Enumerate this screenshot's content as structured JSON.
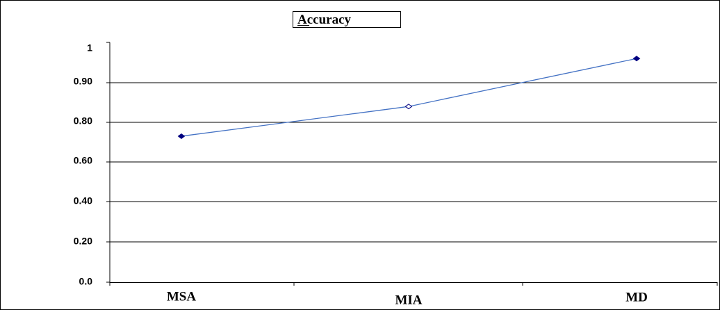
{
  "chart_data": {
    "type": "line",
    "categories": [
      "MSA",
      "MIA",
      "MD"
    ],
    "series": [
      {
        "name": "Accuracy",
        "values": [
          0.73,
          0.84,
          0.96
        ],
        "color": "#4472c4",
        "marker_color": "#000080"
      }
    ],
    "y_tick_labels": [
      "0.0",
      "0.20",
      "0.40",
      "0.60",
      "0.80",
      "0.90",
      "1"
    ],
    "legend": {
      "label": "Accuracy",
      "position": "top-center"
    },
    "grid": true
  }
}
